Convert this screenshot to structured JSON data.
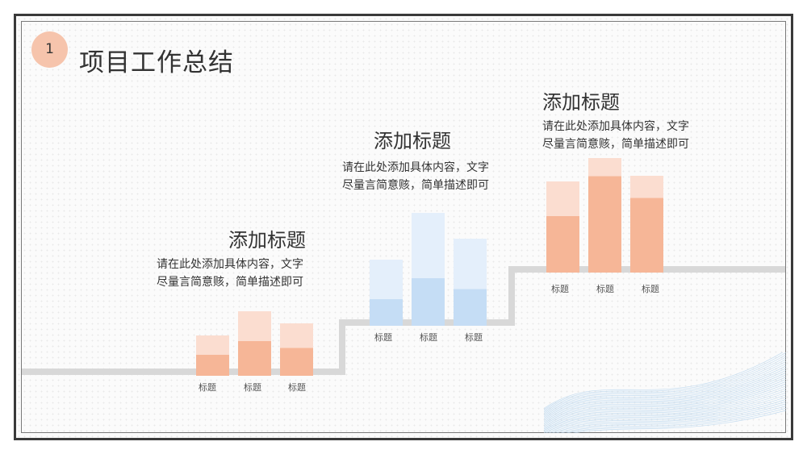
{
  "slide": {
    "number": "1",
    "title": "项目工作总结"
  },
  "colors": {
    "orange_solid": "#f6b697",
    "orange_light": "#fbddd0",
    "blue_solid": "#c5ddf5",
    "blue_light": "#e4effb",
    "step_line": "#d8d8d8",
    "frame": "#3a3a3a"
  },
  "groups": [
    {
      "title": "添加标题",
      "desc_line1": "请在此处添加具体内容，文字",
      "desc_line2": "尽量言简意赅，简单描述即可",
      "color": "orange",
      "bars": [
        {
          "label": "标题",
          "solid": 0.52,
          "total": 1.0
        },
        {
          "label": "标题",
          "solid": 0.54,
          "total": 1.0
        },
        {
          "label": "标题",
          "solid": 0.53,
          "total": 1.0
        }
      ]
    },
    {
      "title": "添加标题",
      "desc_line1": "请在此处添加具体内容，文字",
      "desc_line2": "尽量言简意赅，简单描述即可",
      "color": "blue",
      "bars": [
        {
          "label": "标题",
          "solid": 0.4,
          "total": 1.0
        },
        {
          "label": "标题",
          "solid": 0.42,
          "total": 1.0
        },
        {
          "label": "标题",
          "solid": 0.42,
          "total": 1.0
        }
      ]
    },
    {
      "title": "添加标题",
      "desc_line1": "请在此处添加具体内容，文字",
      "desc_line2": "尽量言简意赅，简单描述即可",
      "color": "orange",
      "bars": [
        {
          "label": "标题",
          "solid": 0.62,
          "total": 1.0
        },
        {
          "label": "标题",
          "solid": 0.84,
          "total": 1.0
        },
        {
          "label": "标题",
          "solid": 0.77,
          "total": 1.0
        }
      ]
    }
  ]
}
